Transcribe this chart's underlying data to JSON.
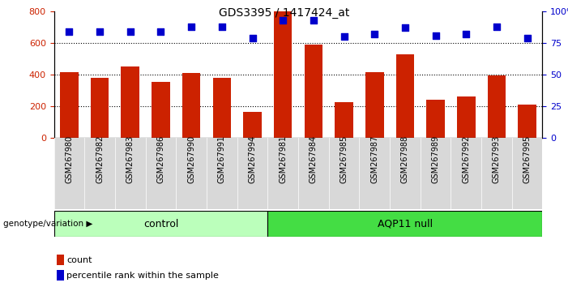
{
  "title": "GDS3395 / 1417424_at",
  "samples": [
    "GSM267980",
    "GSM267982",
    "GSM267983",
    "GSM267986",
    "GSM267990",
    "GSM267991",
    "GSM267994",
    "GSM267981",
    "GSM267984",
    "GSM267985",
    "GSM267987",
    "GSM267988",
    "GSM267989",
    "GSM267992",
    "GSM267993",
    "GSM267995"
  ],
  "counts": [
    415,
    380,
    450,
    355,
    410,
    380,
    165,
    800,
    590,
    225,
    415,
    530,
    240,
    260,
    395,
    210
  ],
  "percentile_ranks": [
    84,
    84,
    84,
    84,
    88,
    88,
    79,
    93,
    93,
    80,
    82,
    87,
    81,
    82,
    88,
    79
  ],
  "groups": [
    "control",
    "control",
    "control",
    "control",
    "control",
    "control",
    "control",
    "AQP11 null",
    "AQP11 null",
    "AQP11 null",
    "AQP11 null",
    "AQP11 null",
    "AQP11 null",
    "AQP11 null",
    "AQP11 null",
    "AQP11 null"
  ],
  "bar_color": "#cc2200",
  "dot_color": "#0000cc",
  "ylim_left": [
    0,
    800
  ],
  "ylim_right": [
    0,
    100
  ],
  "yticks_left": [
    0,
    200,
    400,
    600,
    800
  ],
  "yticks_right": [
    0,
    25,
    50,
    75,
    100
  ],
  "grid_values": [
    200,
    400,
    600
  ],
  "control_color": "#bbffbb",
  "aqp11_color": "#44dd44",
  "tick_bg_color": "#d8d8d8",
  "genotype_label": "genotype/variation",
  "control_label": "control",
  "aqp11_label": "AQP11 null",
  "legend_count_label": "count",
  "legend_pct_label": "percentile rank within the sample",
  "bar_width": 0.6,
  "control_n": 7,
  "aqp11_n": 9
}
